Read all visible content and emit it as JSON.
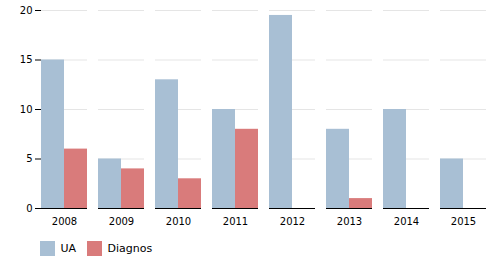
{
  "chart_data": {
    "type": "bar",
    "categories": [
      "2008",
      "2009",
      "2010",
      "2011",
      "2012",
      "2013",
      "2014",
      "2015"
    ],
    "series": [
      {
        "name": "UA",
        "color": "#a8bfd4",
        "values": [
          15,
          5,
          13,
          10,
          19.5,
          8,
          10,
          5
        ]
      },
      {
        "name": "Diagnos",
        "color": "#d97b7b",
        "values": [
          6,
          4,
          3,
          8,
          0,
          1,
          0,
          0
        ]
      }
    ],
    "ylim": [
      0,
      20
    ],
    "yticks": [
      0,
      5,
      10,
      15,
      20
    ],
    "grid": true,
    "legend": "bottom"
  }
}
